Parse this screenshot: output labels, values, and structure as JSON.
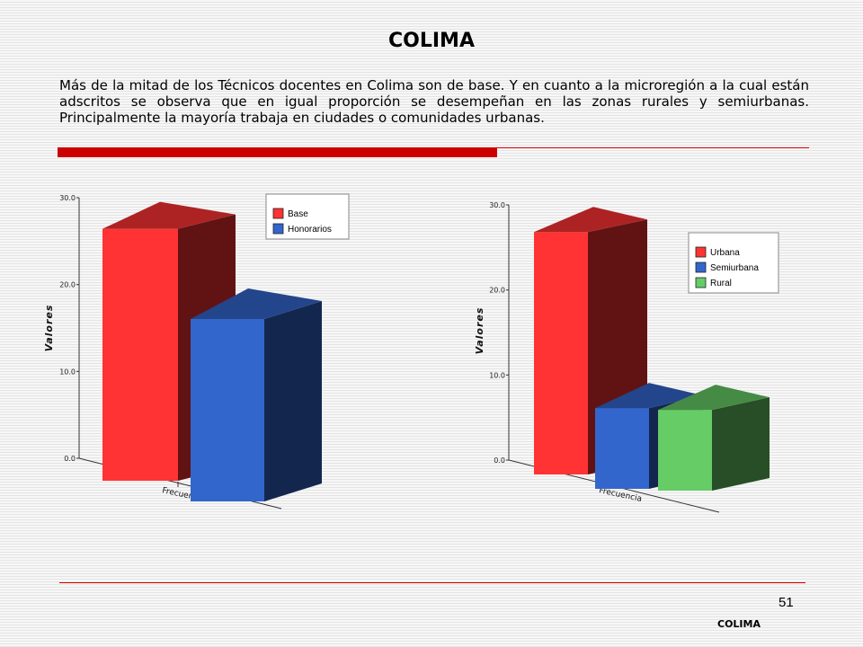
{
  "page": {
    "title": "COLIMA",
    "intro": "Más de la mitad de los Técnicos docentes en Colima son de base. Y en cuanto a la microregión a la cual están adscritos se observa que en igual proporción se desempeñan en las zonas rurales y semiurbanas. Principalmente la mayoría trabaja en ciudades o comunidades urbanas.",
    "page_number": "51",
    "footer": "COLIMA",
    "accent_color": "#cc0000"
  },
  "chart_data": [
    {
      "type": "bar",
      "style": "3d",
      "ylabel": "Valores",
      "categories": [
        "Frecuencia"
      ],
      "ylim": [
        0,
        30
      ],
      "ticks": [
        "0.0",
        "10.0",
        "20.0",
        "30.0"
      ],
      "legend_placement": "top-right",
      "series": [
        {
          "name": "Base",
          "values": [
            29
          ],
          "color": "#ff3333"
        },
        {
          "name": "Honorarios",
          "values": [
            21
          ],
          "color": "#3366cc"
        }
      ]
    },
    {
      "type": "bar",
      "style": "3d",
      "ylabel": "Valores",
      "categories": [
        "Frecuencia"
      ],
      "ylim": [
        0,
        30
      ],
      "ticks": [
        "0.0",
        "10.0",
        "20.0",
        "30.0"
      ],
      "legend_placement": "top-right",
      "series": [
        {
          "name": "Urbana",
          "values": [
            28.5
          ],
          "color": "#ff3333"
        },
        {
          "name": "Semiurbana",
          "values": [
            9.5
          ],
          "color": "#3366cc"
        },
        {
          "name": "Rural",
          "values": [
            9.5
          ],
          "color": "#66cc66"
        }
      ]
    }
  ]
}
